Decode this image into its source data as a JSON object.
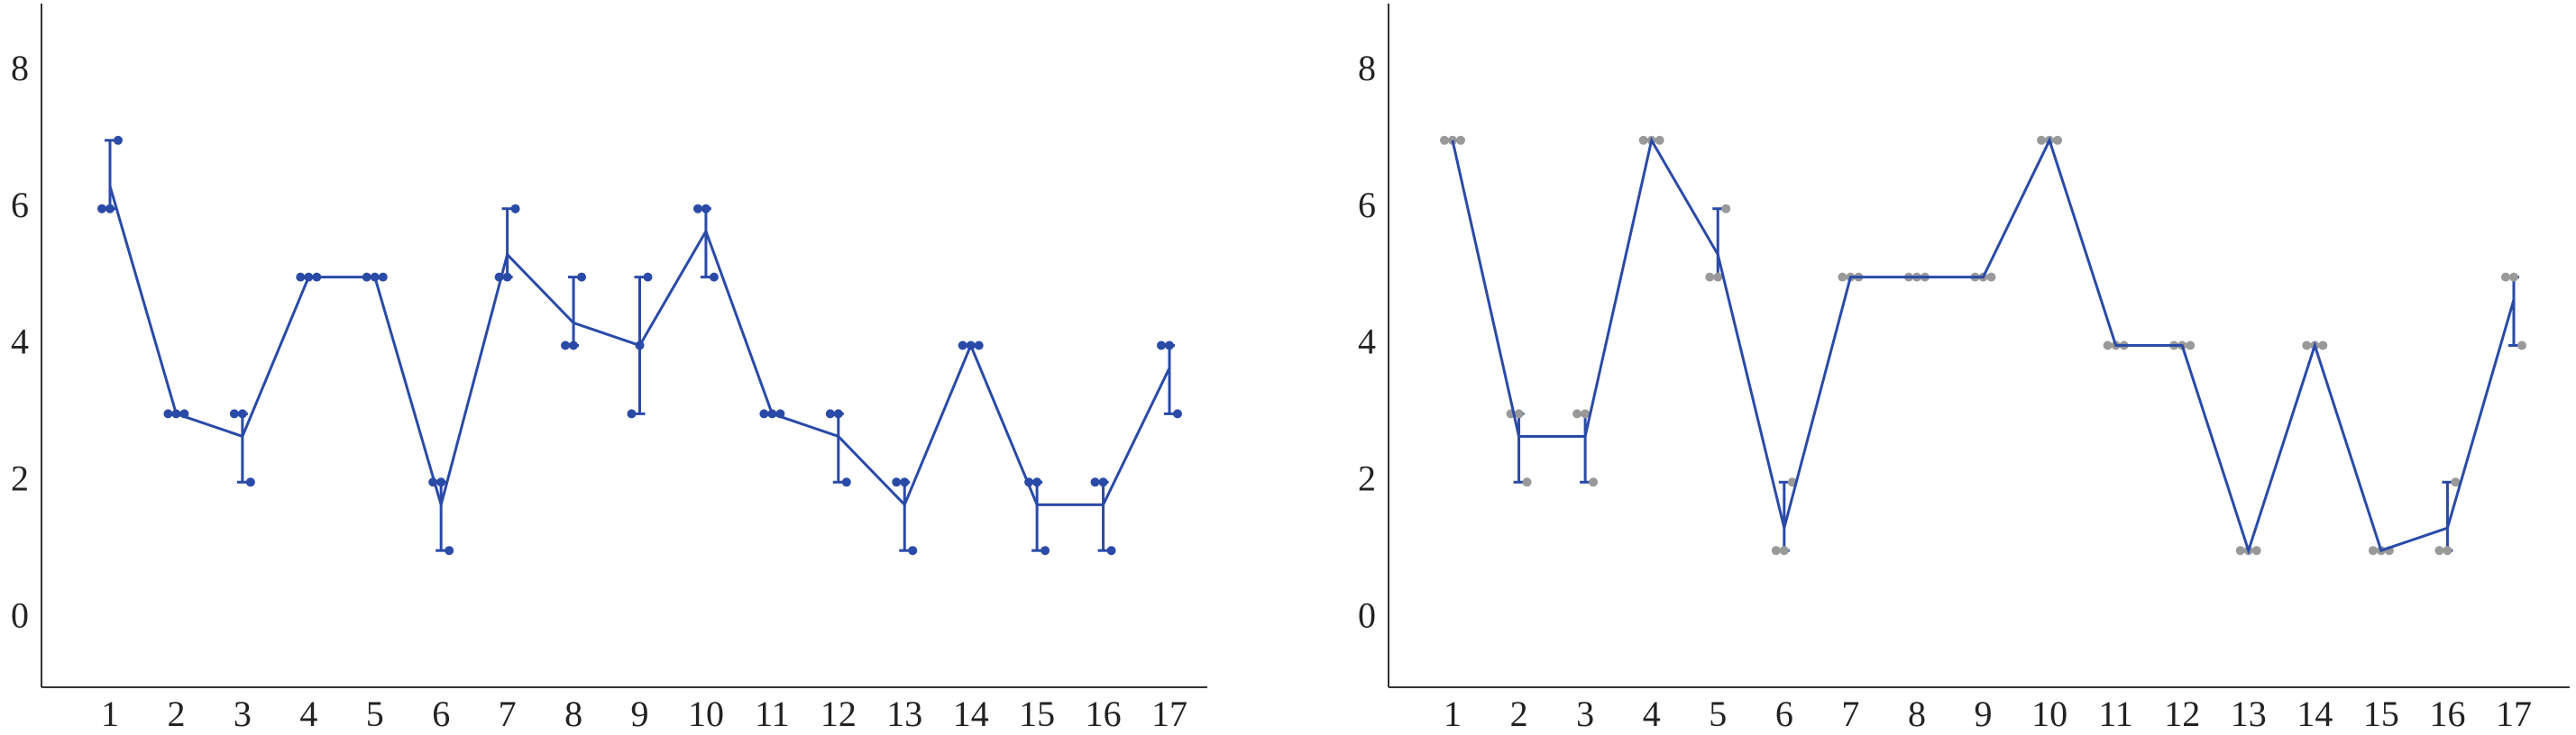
{
  "chart_data": [
    {
      "type": "line",
      "categories": [
        "1",
        "2",
        "3",
        "4",
        "5",
        "6",
        "7",
        "8",
        "9",
        "10",
        "11",
        "12",
        "13",
        "14",
        "15",
        "16",
        "17"
      ],
      "ylim": [
        -1,
        9
      ],
      "yticks": [
        0,
        2,
        4,
        6,
        8
      ],
      "grid": false,
      "series": [
        {
          "color": "#2a4aa8",
          "sample_color": "#2a4aa8",
          "values": [
            6.33,
            3,
            2.67,
            5,
            5,
            1.67,
            5.33,
            4.33,
            4,
            5.67,
            3,
            2.67,
            1.67,
            4,
            1.67,
            1.67,
            3.67
          ],
          "samples": [
            [
              6,
              6,
              7
            ],
            [
              3,
              3,
              3
            ],
            [
              3,
              3,
              2
            ],
            [
              5,
              5,
              5
            ],
            [
              5,
              5,
              5
            ],
            [
              2,
              2,
              1
            ],
            [
              5,
              5,
              6
            ],
            [
              4,
              4,
              5
            ],
            [
              3,
              4,
              5
            ],
            [
              6,
              6,
              5
            ],
            [
              3,
              3,
              3
            ],
            [
              3,
              3,
              2
            ],
            [
              2,
              2,
              1
            ],
            [
              4,
              4,
              4
            ],
            [
              2,
              2,
              1
            ],
            [
              2,
              2,
              1
            ],
            [
              4,
              4,
              3
            ]
          ]
        }
      ]
    },
    {
      "type": "line",
      "categories": [
        "1",
        "2",
        "3",
        "4",
        "5",
        "6",
        "7",
        "8",
        "9",
        "10",
        "11",
        "12",
        "13",
        "14",
        "15",
        "16",
        "17"
      ],
      "ylim": [
        -1,
        9
      ],
      "yticks": [
        0,
        2,
        4,
        6,
        8
      ],
      "grid": false,
      "series": [
        {
          "color": "#2a4aa8",
          "sample_color": "#999999",
          "values": [
            7,
            2.67,
            2.67,
            7,
            5.33,
            1.33,
            5,
            5,
            5,
            7,
            4,
            4,
            1,
            4,
            1,
            1.33,
            4.67
          ],
          "samples": [
            [
              7,
              7,
              7
            ],
            [
              3,
              3,
              2
            ],
            [
              3,
              3,
              2
            ],
            [
              7,
              7,
              7
            ],
            [
              5,
              5,
              6
            ],
            [
              1,
              1,
              2
            ],
            [
              5,
              5,
              5
            ],
            [
              5,
              5,
              5
            ],
            [
              5,
              5,
              5
            ],
            [
              7,
              7,
              7
            ],
            [
              4,
              4,
              4
            ],
            [
              4,
              4,
              4
            ],
            [
              1,
              1,
              1
            ],
            [
              4,
              4,
              4
            ],
            [
              1,
              1,
              1
            ],
            [
              1,
              1,
              2
            ],
            [
              5,
              5,
              4
            ]
          ]
        }
      ]
    }
  ]
}
